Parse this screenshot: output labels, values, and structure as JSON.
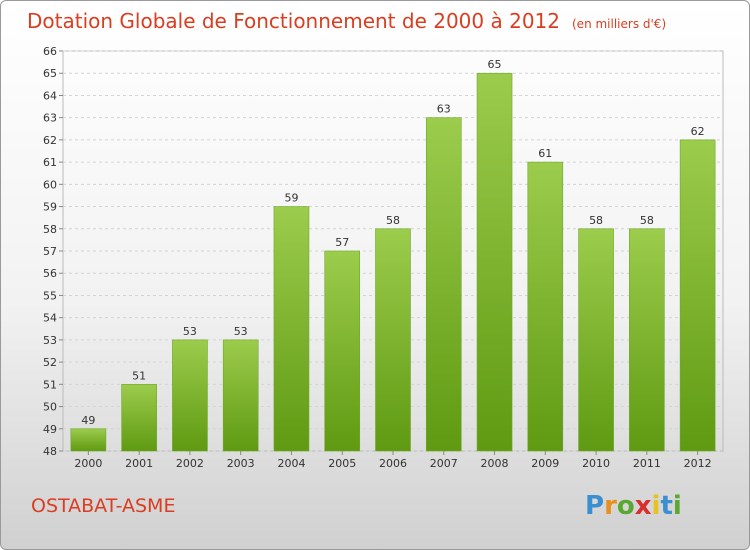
{
  "chart_data": {
    "type": "bar",
    "title": "Dotation Globale de Fonctionnement de 2000 à 2012",
    "unit": "(en milliers d'€)",
    "categories": [
      "2000",
      "2001",
      "2002",
      "2003",
      "2004",
      "2005",
      "2006",
      "2007",
      "2008",
      "2009",
      "2010",
      "2011",
      "2012"
    ],
    "values": [
      49,
      51,
      53,
      53,
      59,
      57,
      58,
      63,
      65,
      61,
      58,
      58,
      62
    ],
    "ylim": [
      48,
      66
    ],
    "yticks": [
      "48",
      "49",
      "50",
      "51",
      "52",
      "53",
      "54",
      "55",
      "56",
      "57",
      "58",
      "59",
      "60",
      "61",
      "62",
      "63",
      "64",
      "65",
      "66"
    ],
    "grid": true,
    "bar_color_top": "#9ccc4c",
    "bar_color_bottom": "#5f9a12"
  },
  "footer": {
    "place": "OSTABAT-ASME",
    "logo": {
      "letters": [
        "P",
        "r",
        "o",
        "x",
        "i",
        "t",
        "i"
      ],
      "colors": [
        "#3a8fd0",
        "#e8901e",
        "#5aa832",
        "#d82e2e",
        "#e8c21e",
        "#3a8fd0",
        "#5aa832"
      ]
    }
  }
}
